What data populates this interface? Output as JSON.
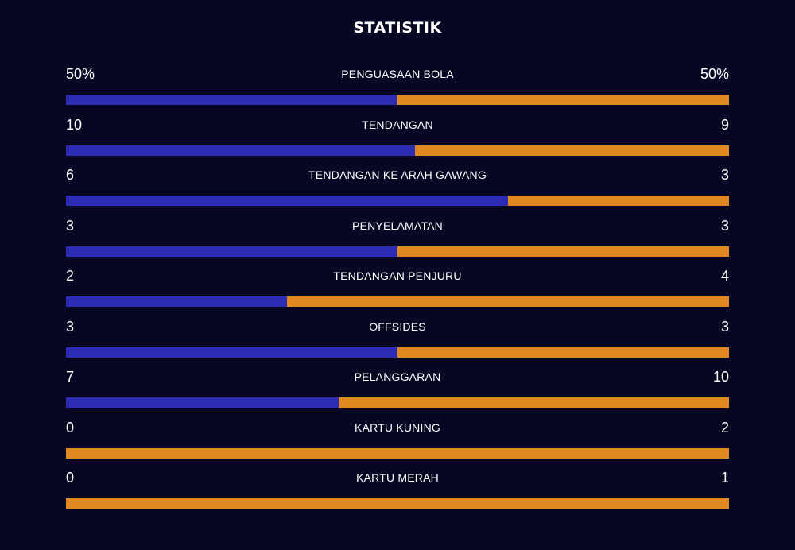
{
  "title": "STATISTIK",
  "colors": {
    "background": "#080723",
    "home": "#2b2bb4",
    "away": "#e0891e",
    "text": "#ffffff"
  },
  "stats": [
    {
      "label": "PENGUASAAN BOLA",
      "home": "50%",
      "away": "50%",
      "home_value": 50,
      "away_value": 50
    },
    {
      "label": "TENDANGAN",
      "home": "10",
      "away": "9",
      "home_value": 10,
      "away_value": 9
    },
    {
      "label": "TENDANGAN KE ARAH GAWANG",
      "home": "6",
      "away": "3",
      "home_value": 6,
      "away_value": 3
    },
    {
      "label": "PENYELAMATAN",
      "home": "3",
      "away": "3",
      "home_value": 3,
      "away_value": 3
    },
    {
      "label": "TENDANGAN PENJURU",
      "home": "2",
      "away": "4",
      "home_value": 2,
      "away_value": 4
    },
    {
      "label": "OFFSIDES",
      "home": "3",
      "away": "3",
      "home_value": 3,
      "away_value": 3
    },
    {
      "label": "PELANGGARAN",
      "home": "7",
      "away": "10",
      "home_value": 7,
      "away_value": 10
    },
    {
      "label": "KARTU KUNING",
      "home": "0",
      "away": "2",
      "home_value": 0,
      "away_value": 2
    },
    {
      "label": "KARTU MERAH",
      "home": "0",
      "away": "1",
      "home_value": 0,
      "away_value": 1
    }
  ]
}
